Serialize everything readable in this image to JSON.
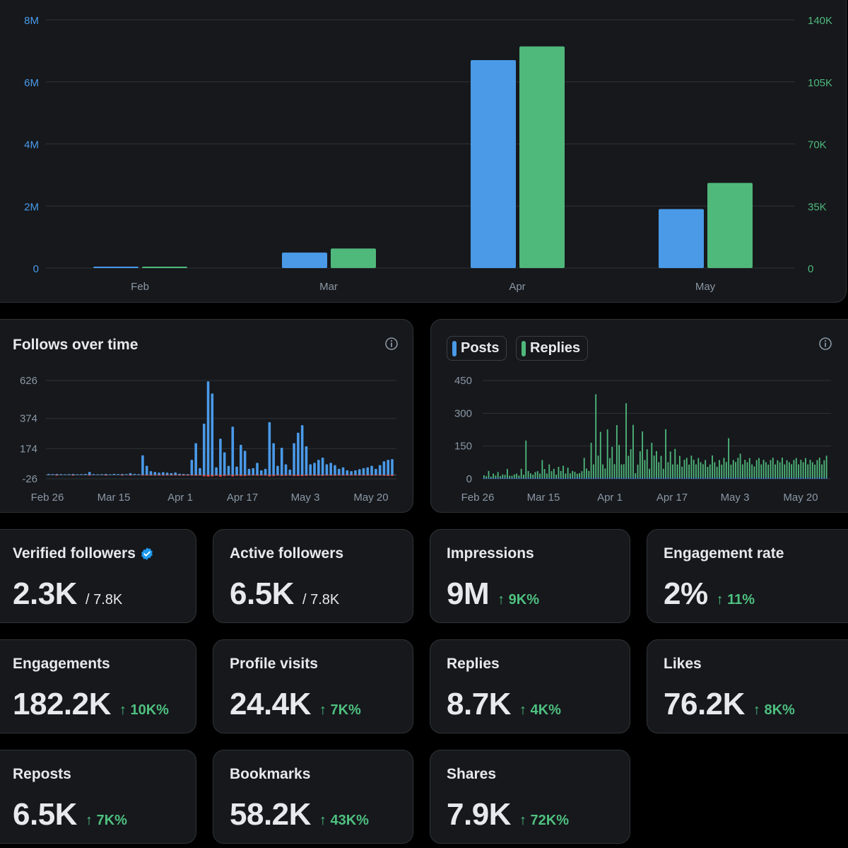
{
  "top_chart": {
    "chart_data": {
      "type": "bar",
      "categories": [
        "Feb",
        "Mar",
        "Apr",
        "May"
      ],
      "series": [
        {
          "values": [
            40000,
            500000,
            6700000,
            1900000
          ],
          "axis": "left",
          "color": "#4a9ae8"
        },
        {
          "values": [
            500,
            11000,
            125000,
            48000
          ],
          "axis": "right",
          "color": "#4fb87b"
        }
      ],
      "left_ticks": [
        "0",
        "2M",
        "4M",
        "6M",
        "8M"
      ],
      "right_ticks": [
        "0",
        "35K",
        "70K",
        "105K",
        "140K"
      ],
      "left_ylim": [
        0,
        8000000
      ],
      "right_ylim": [
        0,
        140000
      ],
      "grid": true
    }
  },
  "follows_chart": {
    "title": "Follows over time",
    "icon": "info-icon",
    "chart_data": {
      "type": "bar",
      "y_ticks": [
        "-26",
        "174",
        "374",
        "626"
      ],
      "ylim": [
        -26,
        626
      ],
      "x_ticks": [
        "Feb 26",
        "Mar 15",
        "Apr 1",
        "Apr 17",
        "May 3",
        "May 20"
      ],
      "follows": [
        6,
        5,
        6,
        5,
        4,
        5,
        6,
        4,
        5,
        6,
        20,
        5,
        4,
        5,
        6,
        4,
        7,
        5,
        6,
        5,
        12,
        6,
        5,
        130,
        60,
        25,
        20,
        15,
        18,
        15,
        12,
        16,
        8,
        6,
        5,
        100,
        210,
        45,
        340,
        620,
        540,
        50,
        240,
        150,
        60,
        320,
        55,
        200,
        160,
        40,
        45,
        80,
        30,
        40,
        350,
        210,
        60,
        180,
        70,
        35,
        210,
        280,
        330,
        190,
        70,
        80,
        100,
        115,
        70,
        80,
        65,
        40,
        50,
        30,
        25,
        30,
        38,
        45,
        50,
        60,
        40,
        65,
        90,
        100,
        105
      ],
      "unfollows": [
        0,
        0,
        1,
        0,
        0,
        0,
        1,
        0,
        0,
        0,
        2,
        0,
        0,
        0,
        1,
        0,
        0,
        0,
        1,
        0,
        1,
        0,
        0,
        4,
        3,
        4,
        2,
        2,
        3,
        2,
        2,
        3,
        1,
        1,
        1,
        5,
        6,
        4,
        10,
        12,
        10,
        6,
        12,
        8,
        5,
        10,
        6,
        8,
        8,
        5,
        5,
        6,
        4,
        5,
        10,
        8,
        5,
        7,
        6,
        4,
        8,
        8,
        8,
        7,
        5,
        6,
        6,
        7,
        5,
        5,
        6,
        4,
        5,
        4,
        3,
        4,
        4,
        5,
        5,
        5,
        4,
        5,
        6,
        7,
        7
      ],
      "follow_color": "#4a9ae8",
      "unfollow_color": "#e0473e"
    }
  },
  "posts_chart": {
    "icon": "info-icon",
    "legend": [
      {
        "label": "Posts",
        "color": "#4a9ae8"
      },
      {
        "label": "Replies",
        "color": "#4fb87b"
      }
    ],
    "chart_data": {
      "type": "bar",
      "y_ticks": [
        "0",
        "150",
        "300",
        "450"
      ],
      "ylim": [
        0,
        450
      ],
      "x_ticks": [
        "Feb 26",
        "Mar 15",
        "Apr 1",
        "Apr 17",
        "May 3",
        "May 20"
      ],
      "posts": [
        6,
        4,
        6,
        5,
        4,
        5,
        6,
        4,
        5,
        6,
        5,
        4,
        6,
        5,
        4,
        5,
        6,
        4,
        5,
        6,
        5,
        4,
        6,
        5,
        4,
        6,
        5,
        4,
        6,
        5,
        6,
        4,
        5,
        6,
        5,
        4,
        6,
        5,
        6,
        7,
        8,
        6,
        5,
        6,
        7,
        6,
        5,
        6,
        7,
        6,
        5,
        6,
        7,
        6,
        5,
        6,
        7,
        6,
        5,
        6,
        7,
        6,
        5,
        6,
        7,
        6,
        5,
        6,
        7,
        6,
        5,
        6,
        5,
        6,
        7,
        6,
        5,
        6,
        7,
        6,
        5,
        6,
        7,
        6,
        5,
        6,
        7,
        6,
        5,
        6,
        7,
        6,
        5,
        6,
        7,
        6,
        5,
        6,
        7,
        6,
        5,
        6,
        5,
        6,
        7,
        6,
        5,
        6,
        7,
        6,
        5,
        6,
        7,
        6,
        5,
        6,
        7,
        6,
        5,
        6,
        7,
        6,
        5,
        6,
        7,
        6,
        5,
        6,
        7,
        6,
        5,
        6,
        7,
        6,
        5,
        6,
        7,
        6,
        5,
        6,
        7,
        6,
        5,
        6,
        7,
        6,
        5,
        6
      ],
      "replies": [
        10,
        8,
        30,
        5,
        20,
        10,
        25,
        8,
        15,
        12,
        40,
        10,
        8,
        15,
        20,
        10,
        40,
        15,
        170,
        30,
        20,
        15,
        25,
        30,
        20,
        80,
        40,
        20,
        60,
        30,
        40,
        15,
        50,
        30,
        55,
        20,
        45,
        20,
        30,
        25,
        15,
        20,
        30,
        90,
        40,
        30,
        160,
        60,
        380,
        100,
        210,
        60,
        40,
        220,
        90,
        140,
        60,
        240,
        150,
        60,
        60,
        340,
        100,
        130,
        240,
        20,
        60,
        120,
        210,
        80,
        130,
        40,
        160,
        100,
        120,
        70,
        100,
        40,
        220,
        70,
        120,
        60,
        130,
        60,
        100,
        50,
        80,
        90,
        60,
        100,
        80,
        60,
        90,
        70,
        60,
        80,
        50,
        60,
        100,
        70,
        50,
        80,
        60,
        90,
        70,
        180,
        60,
        80,
        70,
        90,
        110,
        60,
        80,
        70,
        90,
        60,
        50,
        80,
        90,
        60,
        80,
        70,
        60,
        80,
        90,
        60,
        80,
        70,
        90,
        60,
        80,
        70,
        60,
        80,
        90,
        60,
        80,
        70,
        90,
        60,
        80,
        70,
        60,
        80,
        90,
        60,
        80,
        100
      ],
      "post_color": "#4a9ae8",
      "reply_color": "#4fb87b"
    }
  },
  "stats": [
    {
      "label": "Verified followers",
      "value": "2.3K",
      "total": "/ 7.8K",
      "change": "",
      "icon": "verified-icon"
    },
    {
      "label": "Active followers",
      "value": "6.5K",
      "total": "/ 7.8K",
      "change": ""
    },
    {
      "label": "Impressions",
      "value": "9M",
      "total": "",
      "change": "↑ 9K%"
    },
    {
      "label": "Engagement rate",
      "value": "2%",
      "total": "",
      "change": "↑ 11%"
    },
    {
      "label": "Engagements",
      "value": "182.2K",
      "total": "",
      "change": "↑ 10K%"
    },
    {
      "label": "Profile visits",
      "value": "24.4K",
      "total": "",
      "change": "↑ 7K%"
    },
    {
      "label": "Replies",
      "value": "8.7K",
      "total": "",
      "change": "↑ 4K%"
    },
    {
      "label": "Likes",
      "value": "76.2K",
      "total": "",
      "change": "↑ 8K%"
    },
    {
      "label": "Reposts",
      "value": "6.5K",
      "total": "",
      "change": "↑ 7K%"
    },
    {
      "label": "Bookmarks",
      "value": "58.2K",
      "total": "",
      "change": "↑ 43K%"
    },
    {
      "label": "Shares",
      "value": "7.9K",
      "total": "",
      "change": "↑ 72K%"
    }
  ],
  "colors": {
    "accent_blue": "#4a9ae8",
    "accent_green": "#4fb87b",
    "card_bg": "#16181c",
    "border": "#2f3336",
    "positive": "#4ec07f"
  }
}
